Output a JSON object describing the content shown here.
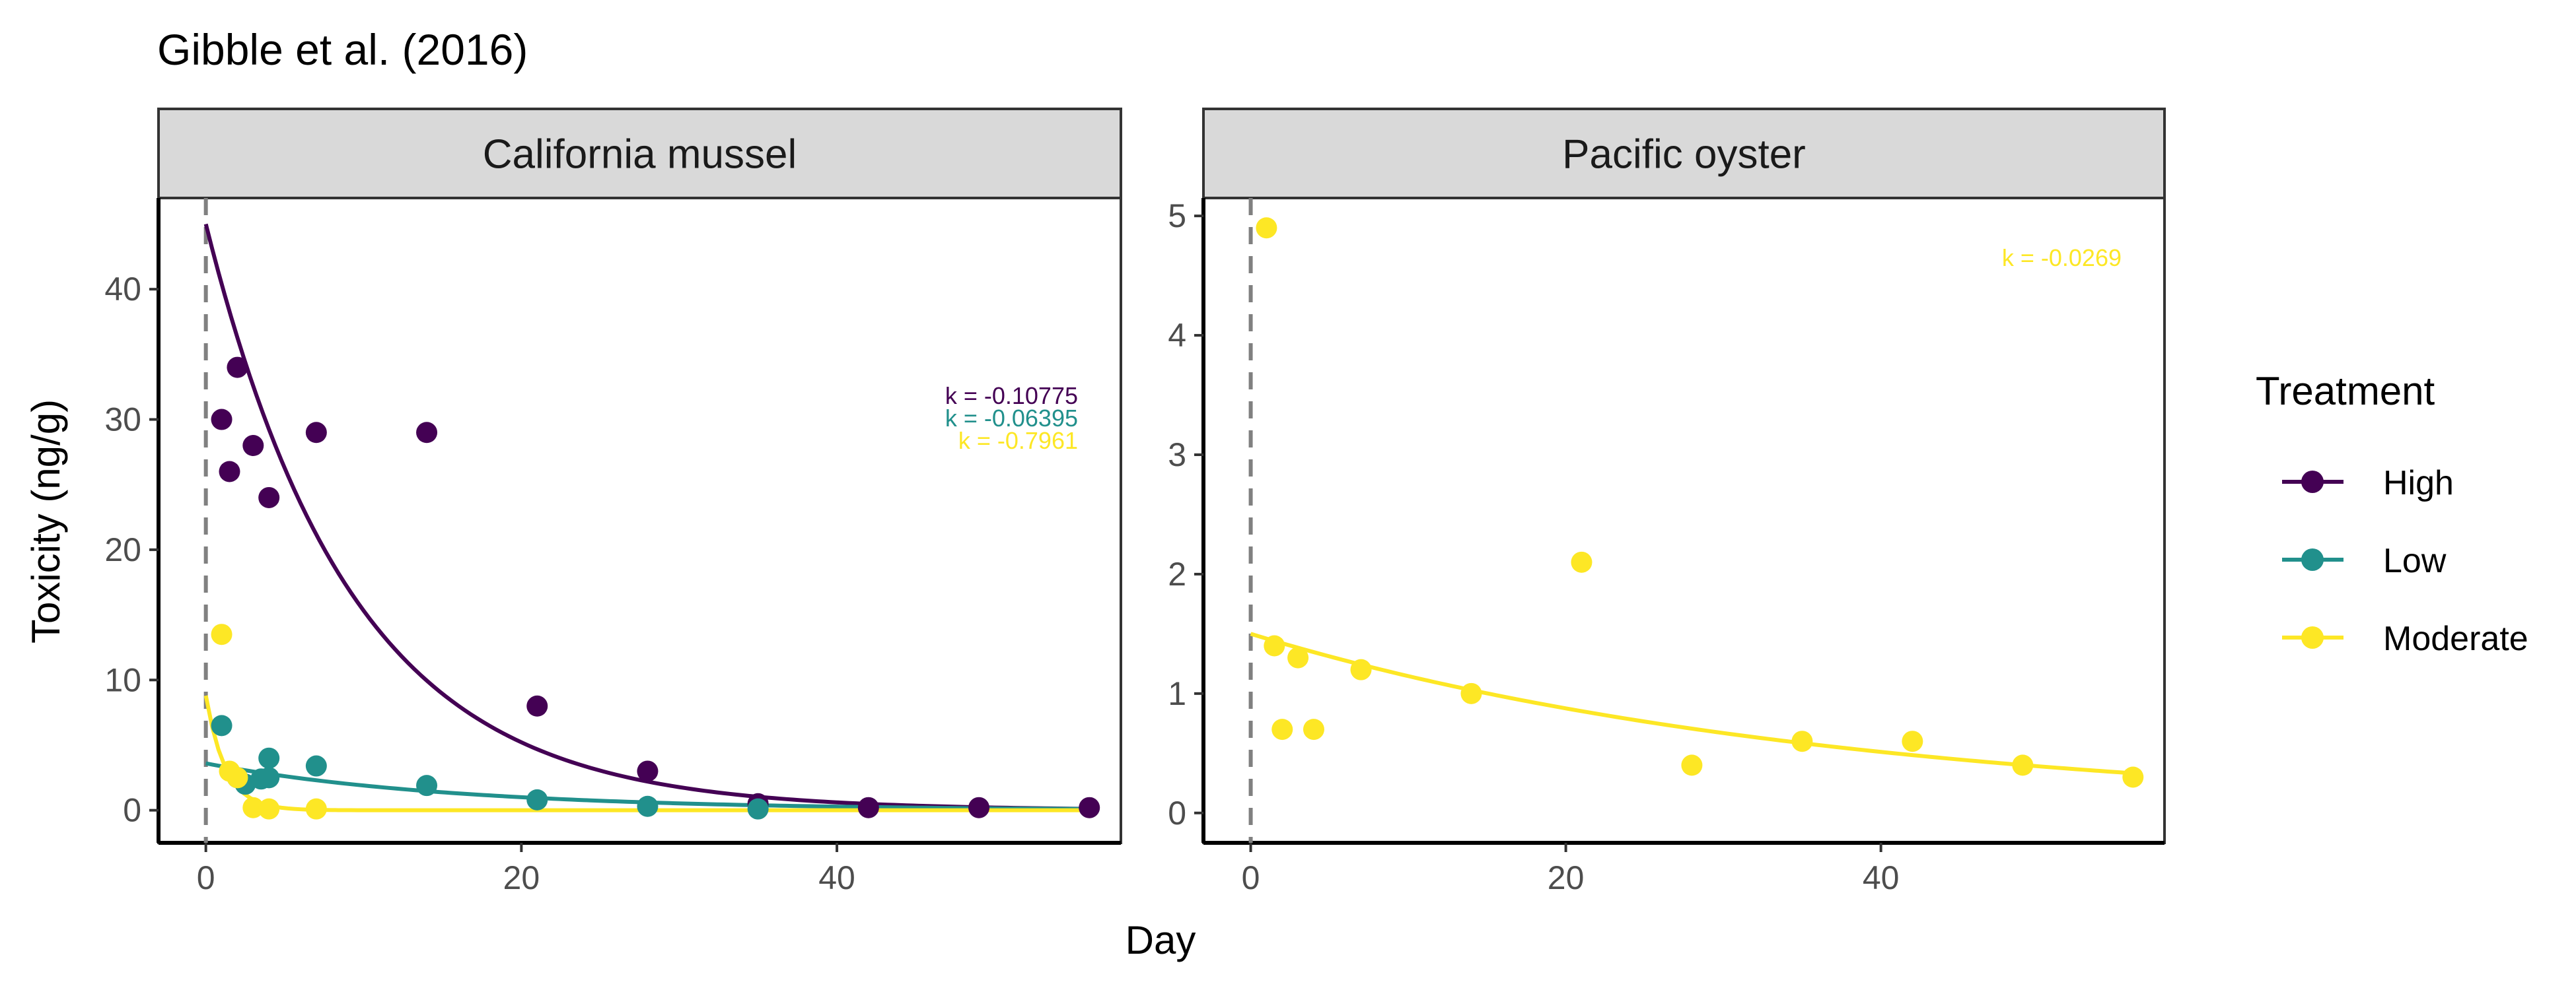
{
  "chart_data": {
    "type": "scatter",
    "title": "Gibble et al. (2016)",
    "xlabel": "Day",
    "ylabel": "Toxicity (ng/g)",
    "legend": {
      "title": "Treatment",
      "placement": "right",
      "entries": [
        {
          "name": "High",
          "color": "#440154"
        },
        {
          "name": "Low",
          "color": "#21908C"
        },
        {
          "name": "Moderate",
          "color": "#FDE725"
        }
      ]
    },
    "reference_line": {
      "x": 0,
      "style": "dashed",
      "color": "#808080"
    },
    "panels": [
      {
        "name": "California mussel",
        "xlim": [
          -3,
          58
        ],
        "ylim": [
          -2.5,
          47
        ],
        "xticks": [
          0,
          20,
          40
        ],
        "yticks": [
          0,
          10,
          20,
          30,
          40
        ],
        "series": [
          {
            "name": "High",
            "color": "#440154",
            "k_label": "k = -0.10775",
            "fit": {
              "a": 45,
              "k": -0.10775
            },
            "points": [
              [
                1,
                30
              ],
              [
                1.5,
                26
              ],
              [
                2,
                34
              ],
              [
                3,
                28
              ],
              [
                4,
                24
              ],
              [
                7,
                29
              ],
              [
                14,
                29
              ],
              [
                21,
                8
              ],
              [
                28,
                3
              ],
              [
                35,
                0.5
              ],
              [
                42,
                0.2
              ],
              [
                49,
                0.2
              ],
              [
                56,
                0.2
              ]
            ]
          },
          {
            "name": "Low",
            "color": "#21908C",
            "k_label": "k = -0.06395",
            "fit": {
              "a": 3.6,
              "k": -0.06395
            },
            "points": [
              [
                1,
                6.5
              ],
              [
                2,
                2.5
              ],
              [
                2.5,
                2
              ],
              [
                3.5,
                2.4
              ],
              [
                4,
                4
              ],
              [
                4,
                2.5
              ],
              [
                7,
                3.4
              ],
              [
                14,
                1.9
              ],
              [
                21,
                0.8
              ],
              [
                28,
                0.3
              ],
              [
                35,
                0.1
              ]
            ]
          },
          {
            "name": "Moderate",
            "color": "#FDE725",
            "k_label": "k = -0.7961",
            "fit": {
              "a": 8.8,
              "k": -0.7961
            },
            "points": [
              [
                1,
                13.5
              ],
              [
                1.5,
                3
              ],
              [
                2,
                2.5
              ],
              [
                3,
                0.2
              ],
              [
                4,
                0.1
              ],
              [
                7,
                0.1
              ]
            ]
          }
        ]
      },
      {
        "name": "Pacific oyster",
        "xlim": [
          -3,
          58
        ],
        "ylim": [
          -0.25,
          5.15
        ],
        "xticks": [
          0,
          20,
          40
        ],
        "yticks": [
          0,
          1,
          2,
          3,
          4,
          5
        ],
        "series": [
          {
            "name": "Moderate",
            "color": "#FDE725",
            "k_label": "k = -0.0269",
            "fit": {
              "a": 1.5,
              "k": -0.0269
            },
            "points": [
              [
                1,
                4.9
              ],
              [
                1.5,
                1.4
              ],
              [
                2,
                0.7
              ],
              [
                3,
                1.3
              ],
              [
                4,
                0.7
              ],
              [
                7,
                1.2
              ],
              [
                14,
                1.0
              ],
              [
                21,
                2.1
              ],
              [
                28,
                0.4
              ],
              [
                35,
                0.6
              ],
              [
                42,
                0.6
              ],
              [
                49,
                0.4
              ],
              [
                56,
                0.3
              ]
            ]
          }
        ]
      }
    ]
  }
}
